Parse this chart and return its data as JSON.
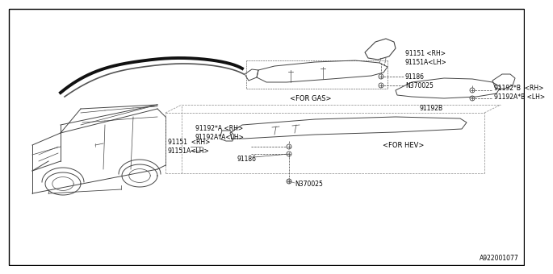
{
  "background_color": "#ffffff",
  "diagram_id": "A922001077",
  "line_color": "#444444",
  "dark_color": "#111111",
  "text_color": "#000000",
  "font_size": 6.0,
  "small_font_size": 5.5,
  "border_color": "#000000",
  "labels": {
    "gas_part": "91151 <RH>\n91151A<LH>",
    "gas_91186": "91186",
    "gas_n370025": "N370025",
    "for_gas": "<FOR GAS>",
    "hev_91192b": "91192B",
    "hev_b_rh": "91192*B  <RH>\n91192A*B <LH>",
    "hev_a_rh": "91192*A <RH>\n91192A*A<LH>",
    "hev_91151": "91151  <RH>\n91151A<LH>",
    "hev_91186": "91186",
    "hev_n370025": "N370025",
    "for_hev": "<FOR HEV>"
  }
}
